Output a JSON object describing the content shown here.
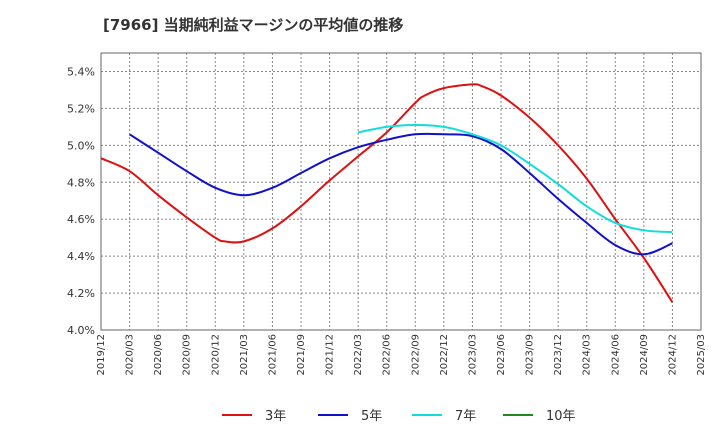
{
  "chart_data": {
    "type": "line",
    "title": "[7966]  当期純利益マージンの平均値の推移",
    "xlabel": "",
    "ylabel": "",
    "x_ticks": [
      "2019/12",
      "2020/03",
      "2020/06",
      "2020/09",
      "2020/12",
      "2021/03",
      "2021/06",
      "2021/09",
      "2021/12",
      "2022/03",
      "2022/06",
      "2022/09",
      "2022/12",
      "2023/03",
      "2023/06",
      "2023/09",
      "2023/12",
      "2024/03",
      "2024/06",
      "2024/09",
      "2024/12",
      "2025/03"
    ],
    "y_ticks": [
      "4.0%",
      "4.2%",
      "4.4%",
      "4.6%",
      "4.8%",
      "5.0%",
      "5.2%",
      "5.4%"
    ],
    "ylim": [
      4.0,
      5.5
    ],
    "y_unit": "%",
    "grid": true,
    "legend_position": "bottom",
    "series": [
      {
        "name": "3年",
        "color": "#dd1111",
        "x": [
          "2019/12",
          "2020/03",
          "2020/06",
          "2020/09",
          "2020/12",
          "2021/01",
          "2021/03",
          "2021/06",
          "2021/09",
          "2021/12",
          "2022/03",
          "2022/06",
          "2022/09",
          "2022/10",
          "2022/12",
          "2023/03",
          "2023/04",
          "2023/06",
          "2023/09",
          "2023/12",
          "2024/03",
          "2024/06",
          "2024/09",
          "2024/12"
        ],
        "values": [
          4.93,
          4.86,
          4.73,
          4.61,
          4.5,
          4.48,
          4.48,
          4.55,
          4.67,
          4.81,
          4.94,
          5.07,
          5.23,
          5.27,
          5.31,
          5.33,
          5.32,
          5.27,
          5.15,
          5.0,
          4.82,
          4.6,
          4.39,
          4.15
        ]
      },
      {
        "name": "5年",
        "color": "#1111cc",
        "x": [
          "2020/03",
          "2020/06",
          "2020/09",
          "2020/12",
          "2021/03",
          "2021/06",
          "2021/09",
          "2021/12",
          "2022/03",
          "2022/06",
          "2022/09",
          "2022/12",
          "2023/03",
          "2023/06",
          "2023/09",
          "2023/12",
          "2024/03",
          "2024/06",
          "2024/09",
          "2024/12"
        ],
        "values": [
          5.06,
          4.96,
          4.86,
          4.77,
          4.73,
          4.77,
          4.85,
          4.93,
          4.99,
          5.03,
          5.06,
          5.06,
          5.05,
          4.98,
          4.85,
          4.71,
          4.58,
          4.46,
          4.41,
          4.47
        ]
      },
      {
        "name": "7年",
        "color": "#11dddd",
        "x": [
          "2022/03",
          "2022/06",
          "2022/09",
          "2022/12",
          "2023/03",
          "2023/06",
          "2023/09",
          "2023/12",
          "2024/03",
          "2024/06",
          "2024/09",
          "2024/12"
        ],
        "values": [
          5.07,
          5.1,
          5.11,
          5.1,
          5.06,
          5.0,
          4.9,
          4.79,
          4.67,
          4.58,
          4.54,
          4.53
        ]
      },
      {
        "name": "10年",
        "color": "#228822",
        "x": [],
        "values": []
      }
    ]
  }
}
